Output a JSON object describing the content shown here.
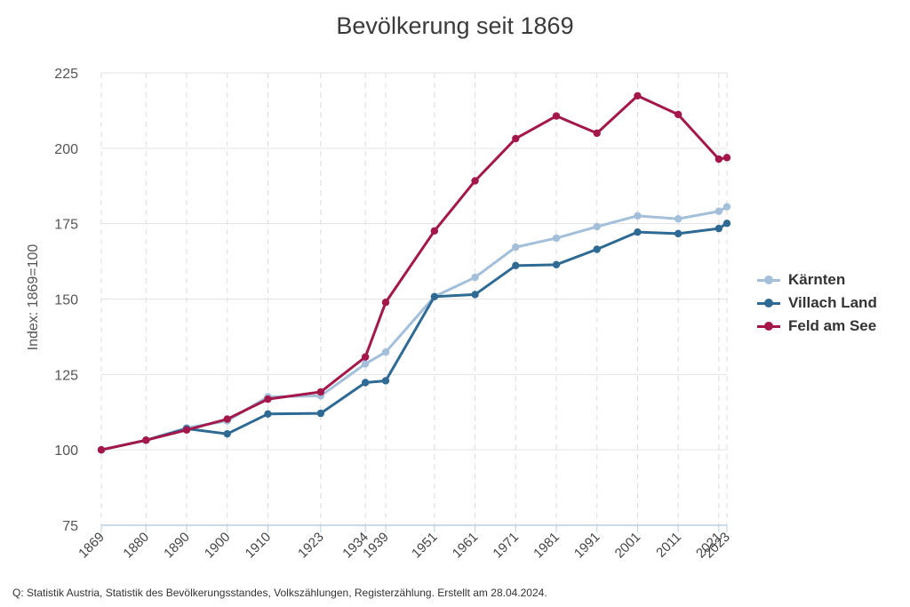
{
  "title": "Bevölkerung seit 1869",
  "source": "Q: Statistik Austria, Statistik des Bevölkerungsstandes, Volkszählungen, Registerzählung. Erstellt am 28.04.2024.",
  "chart_data": {
    "type": "line",
    "title": "Bevölkerung seit 1869",
    "xlabel": "",
    "ylabel": "Index: 1869=100",
    "ylim": [
      75,
      225
    ],
    "yticks": [
      75,
      100,
      125,
      150,
      175,
      200,
      225
    ],
    "x": [
      1869,
      1880,
      1890,
      1900,
      1910,
      1923,
      1934,
      1939,
      1951,
      1961,
      1971,
      1981,
      1991,
      2001,
      2011,
      2021,
      2023
    ],
    "grid": "horizontal solid, vertical dashed",
    "legend_position": "right",
    "series": [
      {
        "name": "Kärnten",
        "color": "#a3bfd9",
        "values": [
          100,
          103.2,
          107.3,
          109.6,
          117.6,
          117.9,
          128.5,
          132.4,
          150.8,
          157.2,
          167.2,
          170.2,
          174.0,
          177.6,
          176.6,
          179.1,
          180.6
        ]
      },
      {
        "name": "Villach Land",
        "color": "#2e6a94",
        "values": [
          100,
          103.2,
          107.0,
          105.3,
          111.9,
          112.1,
          122.3,
          122.9,
          150.8,
          151.5,
          161.1,
          161.4,
          166.5,
          172.2,
          171.7,
          173.4,
          175.1
        ]
      },
      {
        "name": "Feld am See",
        "color": "#a3174a",
        "values": [
          100,
          103.2,
          106.6,
          110.2,
          116.8,
          119.2,
          130.8,
          148.9,
          172.6,
          189.2,
          203.2,
          210.7,
          205.0,
          217.4,
          211.2,
          196.4,
          196.9
        ]
      }
    ]
  }
}
